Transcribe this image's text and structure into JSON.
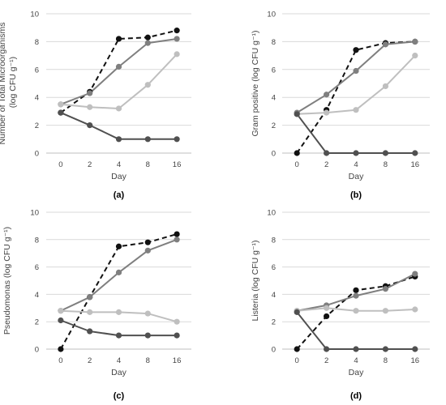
{
  "chart_data": [
    {
      "type": "line",
      "panel_label": "(a)",
      "ylabel": "Number of Total Microorganisms",
      "ylabel_units": "(log CFU g⁻¹)",
      "xlabel": "Day",
      "categories": [
        "0",
        "2",
        "4",
        "8",
        "16"
      ],
      "ylim": [
        0,
        10
      ],
      "yticks": [
        "0",
        "2",
        "4",
        "6",
        "8",
        "10"
      ],
      "grid": "horizontal",
      "series": [
        {
          "color": "#111111",
          "dashed": true,
          "values": [
            2.9,
            4.4,
            8.2,
            8.3,
            8.8
          ]
        },
        {
          "color": "#7f7f7f",
          "dashed": false,
          "values": [
            3.5,
            4.3,
            6.2,
            7.9,
            8.2
          ]
        },
        {
          "color": "#bfbfbf",
          "dashed": false,
          "values": [
            3.5,
            3.3,
            3.2,
            4.9,
            7.1
          ]
        },
        {
          "color": "#505050",
          "dashed": false,
          "values": [
            2.9,
            2.0,
            1.0,
            1.0,
            1.0
          ]
        }
      ]
    },
    {
      "type": "line",
      "panel_label": "(b)",
      "ylabel": "Gram positive",
      "ylabel_units": "(log CFU g⁻¹)",
      "xlabel": "Day",
      "categories": [
        "0",
        "2",
        "4",
        "8",
        "16"
      ],
      "ylim": [
        0,
        10
      ],
      "yticks": [
        "0",
        "2",
        "4",
        "6",
        "8",
        "10"
      ],
      "grid": "horizontal",
      "series": [
        {
          "color": "#111111",
          "dashed": true,
          "values": [
            0.0,
            3.1,
            7.4,
            7.9,
            8.0
          ]
        },
        {
          "color": "#7f7f7f",
          "dashed": false,
          "values": [
            2.9,
            4.2,
            5.9,
            7.8,
            8.0
          ]
        },
        {
          "color": "#bfbfbf",
          "dashed": false,
          "values": [
            2.8,
            2.9,
            3.1,
            4.8,
            7.0
          ]
        },
        {
          "color": "#505050",
          "dashed": false,
          "values": [
            2.8,
            0.0,
            0.0,
            0.0,
            0.0
          ]
        }
      ]
    },
    {
      "type": "line",
      "panel_label": "(c)",
      "ylabel": "Pseudomonas",
      "ylabel_units": "(log CFU g⁻¹)",
      "xlabel": "Day",
      "categories": [
        "0",
        "2",
        "4",
        "8",
        "16"
      ],
      "ylim": [
        0,
        10
      ],
      "yticks": [
        "0",
        "2",
        "4",
        "6",
        "8",
        "10"
      ],
      "grid": "horizontal",
      "series": [
        {
          "color": "#111111",
          "dashed": true,
          "values": [
            0.0,
            3.8,
            7.5,
            7.8,
            8.4
          ]
        },
        {
          "color": "#7f7f7f",
          "dashed": false,
          "values": [
            2.8,
            3.8,
            5.6,
            7.2,
            8.0
          ]
        },
        {
          "color": "#bfbfbf",
          "dashed": false,
          "values": [
            2.8,
            2.7,
            2.7,
            2.6,
            2.0
          ]
        },
        {
          "color": "#505050",
          "dashed": false,
          "values": [
            2.1,
            1.3,
            1.0,
            1.0,
            1.0
          ]
        }
      ]
    },
    {
      "type": "line",
      "panel_label": "(d)",
      "ylabel": "Listeria",
      "ylabel_units": "(log CFU g⁻¹)",
      "xlabel": "Day",
      "categories": [
        "0",
        "2",
        "4",
        "8",
        "16"
      ],
      "ylim": [
        0,
        10
      ],
      "yticks": [
        "0",
        "2",
        "4",
        "6",
        "8",
        "10"
      ],
      "grid": "horizontal",
      "series": [
        {
          "color": "#111111",
          "dashed": true,
          "values": [
            0.0,
            2.4,
            4.3,
            4.6,
            5.3
          ]
        },
        {
          "color": "#7f7f7f",
          "dashed": false,
          "values": [
            2.8,
            3.2,
            3.9,
            4.4,
            5.5
          ]
        },
        {
          "color": "#bfbfbf",
          "dashed": false,
          "values": [
            2.8,
            3.0,
            2.8,
            2.8,
            2.9
          ]
        },
        {
          "color": "#505050",
          "dashed": false,
          "values": [
            2.7,
            0.0,
            0.0,
            0.0,
            0.0
          ]
        }
      ]
    }
  ]
}
